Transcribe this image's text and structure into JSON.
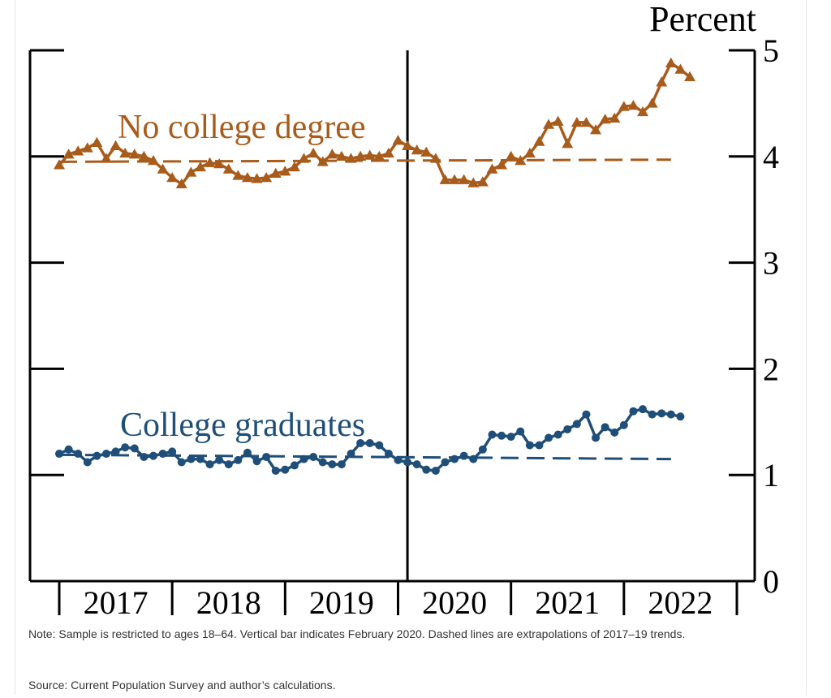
{
  "chart_data": {
    "type": "line",
    "title": "",
    "ylabel": "Percent",
    "xlabel": "",
    "ylim": [
      0,
      5
    ],
    "yticks": [
      0,
      1,
      2,
      3,
      4,
      5
    ],
    "x_axis": {
      "start": "2017-01",
      "end": "2022-12",
      "tick_labels": [
        "2017",
        "2018",
        "2019",
        "2020",
        "2021",
        "2022"
      ]
    },
    "vertical_line": {
      "date": "2020-02"
    },
    "grid": false,
    "series": [
      {
        "name": "No college degree",
        "color": "#a85c1b",
        "marker": "triangle",
        "start": "2017-01",
        "values": [
          3.92,
          4.02,
          4.05,
          4.08,
          4.13,
          3.98,
          4.1,
          4.03,
          4.02,
          4.0,
          3.96,
          3.88,
          3.8,
          3.74,
          3.85,
          3.9,
          3.94,
          3.93,
          3.88,
          3.82,
          3.8,
          3.79,
          3.8,
          3.84,
          3.86,
          3.9,
          3.98,
          4.03,
          3.95,
          4.02,
          4.0,
          3.98,
          4.0,
          4.01,
          4.0,
          4.03,
          4.15,
          4.1,
          4.06,
          4.04,
          3.98,
          3.78,
          3.78,
          3.78,
          3.75,
          3.76,
          3.88,
          3.92,
          4.0,
          3.96,
          4.03,
          4.14,
          4.3,
          4.33,
          4.12,
          4.32,
          4.32,
          4.25,
          4.35,
          4.36,
          4.47,
          4.48,
          4.42,
          4.5,
          4.7,
          4.88,
          4.82,
          4.75
        ],
        "trend": {
          "start": "2017-01",
          "end": "2022-06",
          "from": 3.95,
          "to": 3.97
        }
      },
      {
        "name": "College graduates",
        "color": "#1f4e79",
        "marker": "circle",
        "start": "2017-01",
        "values": [
          1.2,
          1.24,
          1.2,
          1.12,
          1.18,
          1.2,
          1.22,
          1.26,
          1.25,
          1.17,
          1.18,
          1.2,
          1.22,
          1.12,
          1.15,
          1.15,
          1.1,
          1.14,
          1.1,
          1.14,
          1.21,
          1.13,
          1.17,
          1.04,
          1.05,
          1.09,
          1.15,
          1.17,
          1.12,
          1.1,
          1.1,
          1.2,
          1.3,
          1.3,
          1.28,
          1.2,
          1.14,
          1.12,
          1.1,
          1.05,
          1.04,
          1.12,
          1.15,
          1.18,
          1.15,
          1.24,
          1.38,
          1.37,
          1.36,
          1.41,
          1.28,
          1.28,
          1.35,
          1.38,
          1.43,
          1.48,
          1.57,
          1.35,
          1.45,
          1.4,
          1.47,
          1.6,
          1.62,
          1.57,
          1.58,
          1.57,
          1.55
        ],
        "trend": {
          "start": "2017-01",
          "end": "2022-06",
          "from": 1.19,
          "to": 1.15
        }
      }
    ]
  },
  "labels": {
    "no_college": "No college degree",
    "college": "College graduates"
  },
  "note": "Note: Sample is restricted to ages 18–64. Vertical bar indicates February 2020. Dashed lines are extrapolations of 2017–19 trends.",
  "source": "Source: Current Population Survey and author’s calculations."
}
